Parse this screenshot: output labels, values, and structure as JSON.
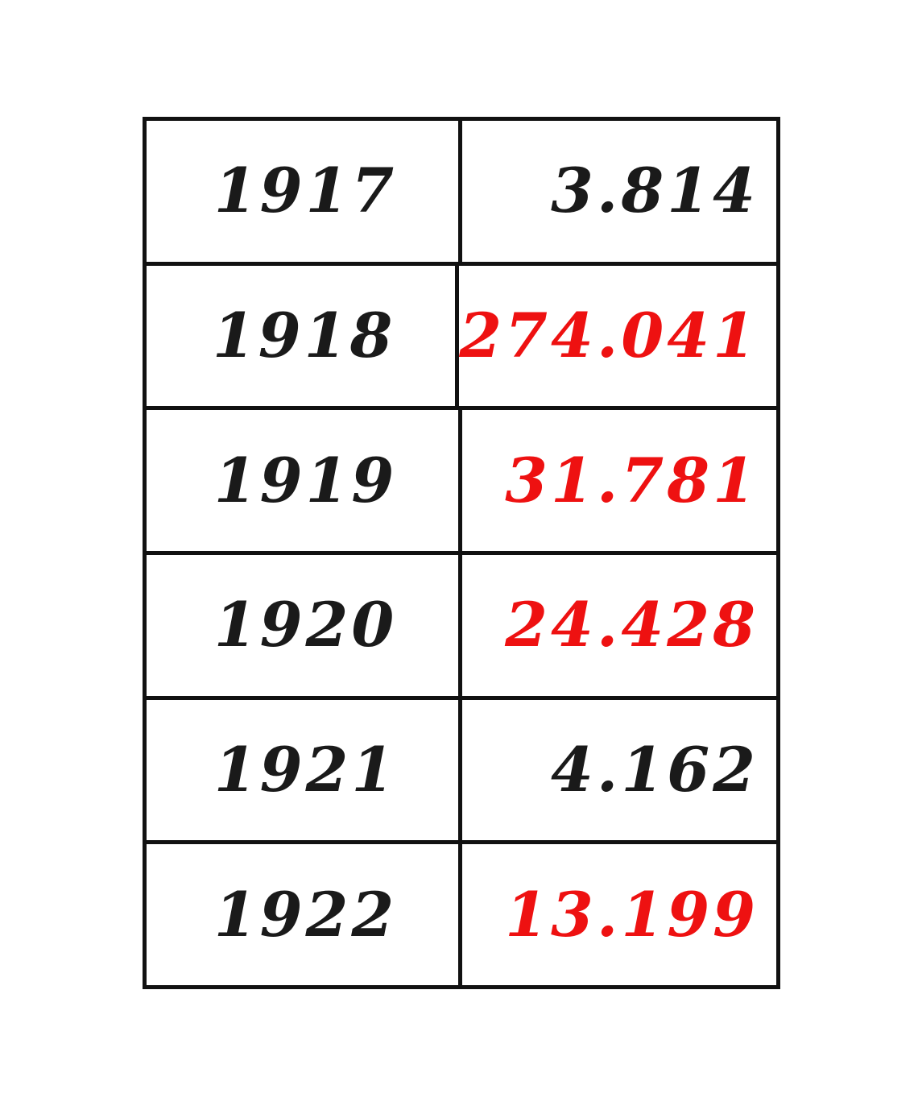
{
  "colors": {
    "normal": "#1a1a1a",
    "highlight": "#ee1111"
  },
  "rows": [
    {
      "year": "1917",
      "value": "3.814",
      "highlight": false
    },
    {
      "year": "1918",
      "value": "274.041",
      "highlight": true
    },
    {
      "year": "1919",
      "value": "31.781",
      "highlight": true
    },
    {
      "year": "1920",
      "value": "24.428",
      "highlight": true
    },
    {
      "year": "1921",
      "value": "4.162",
      "highlight": false
    },
    {
      "year": "1922",
      "value": "13.199",
      "highlight": true
    }
  ]
}
